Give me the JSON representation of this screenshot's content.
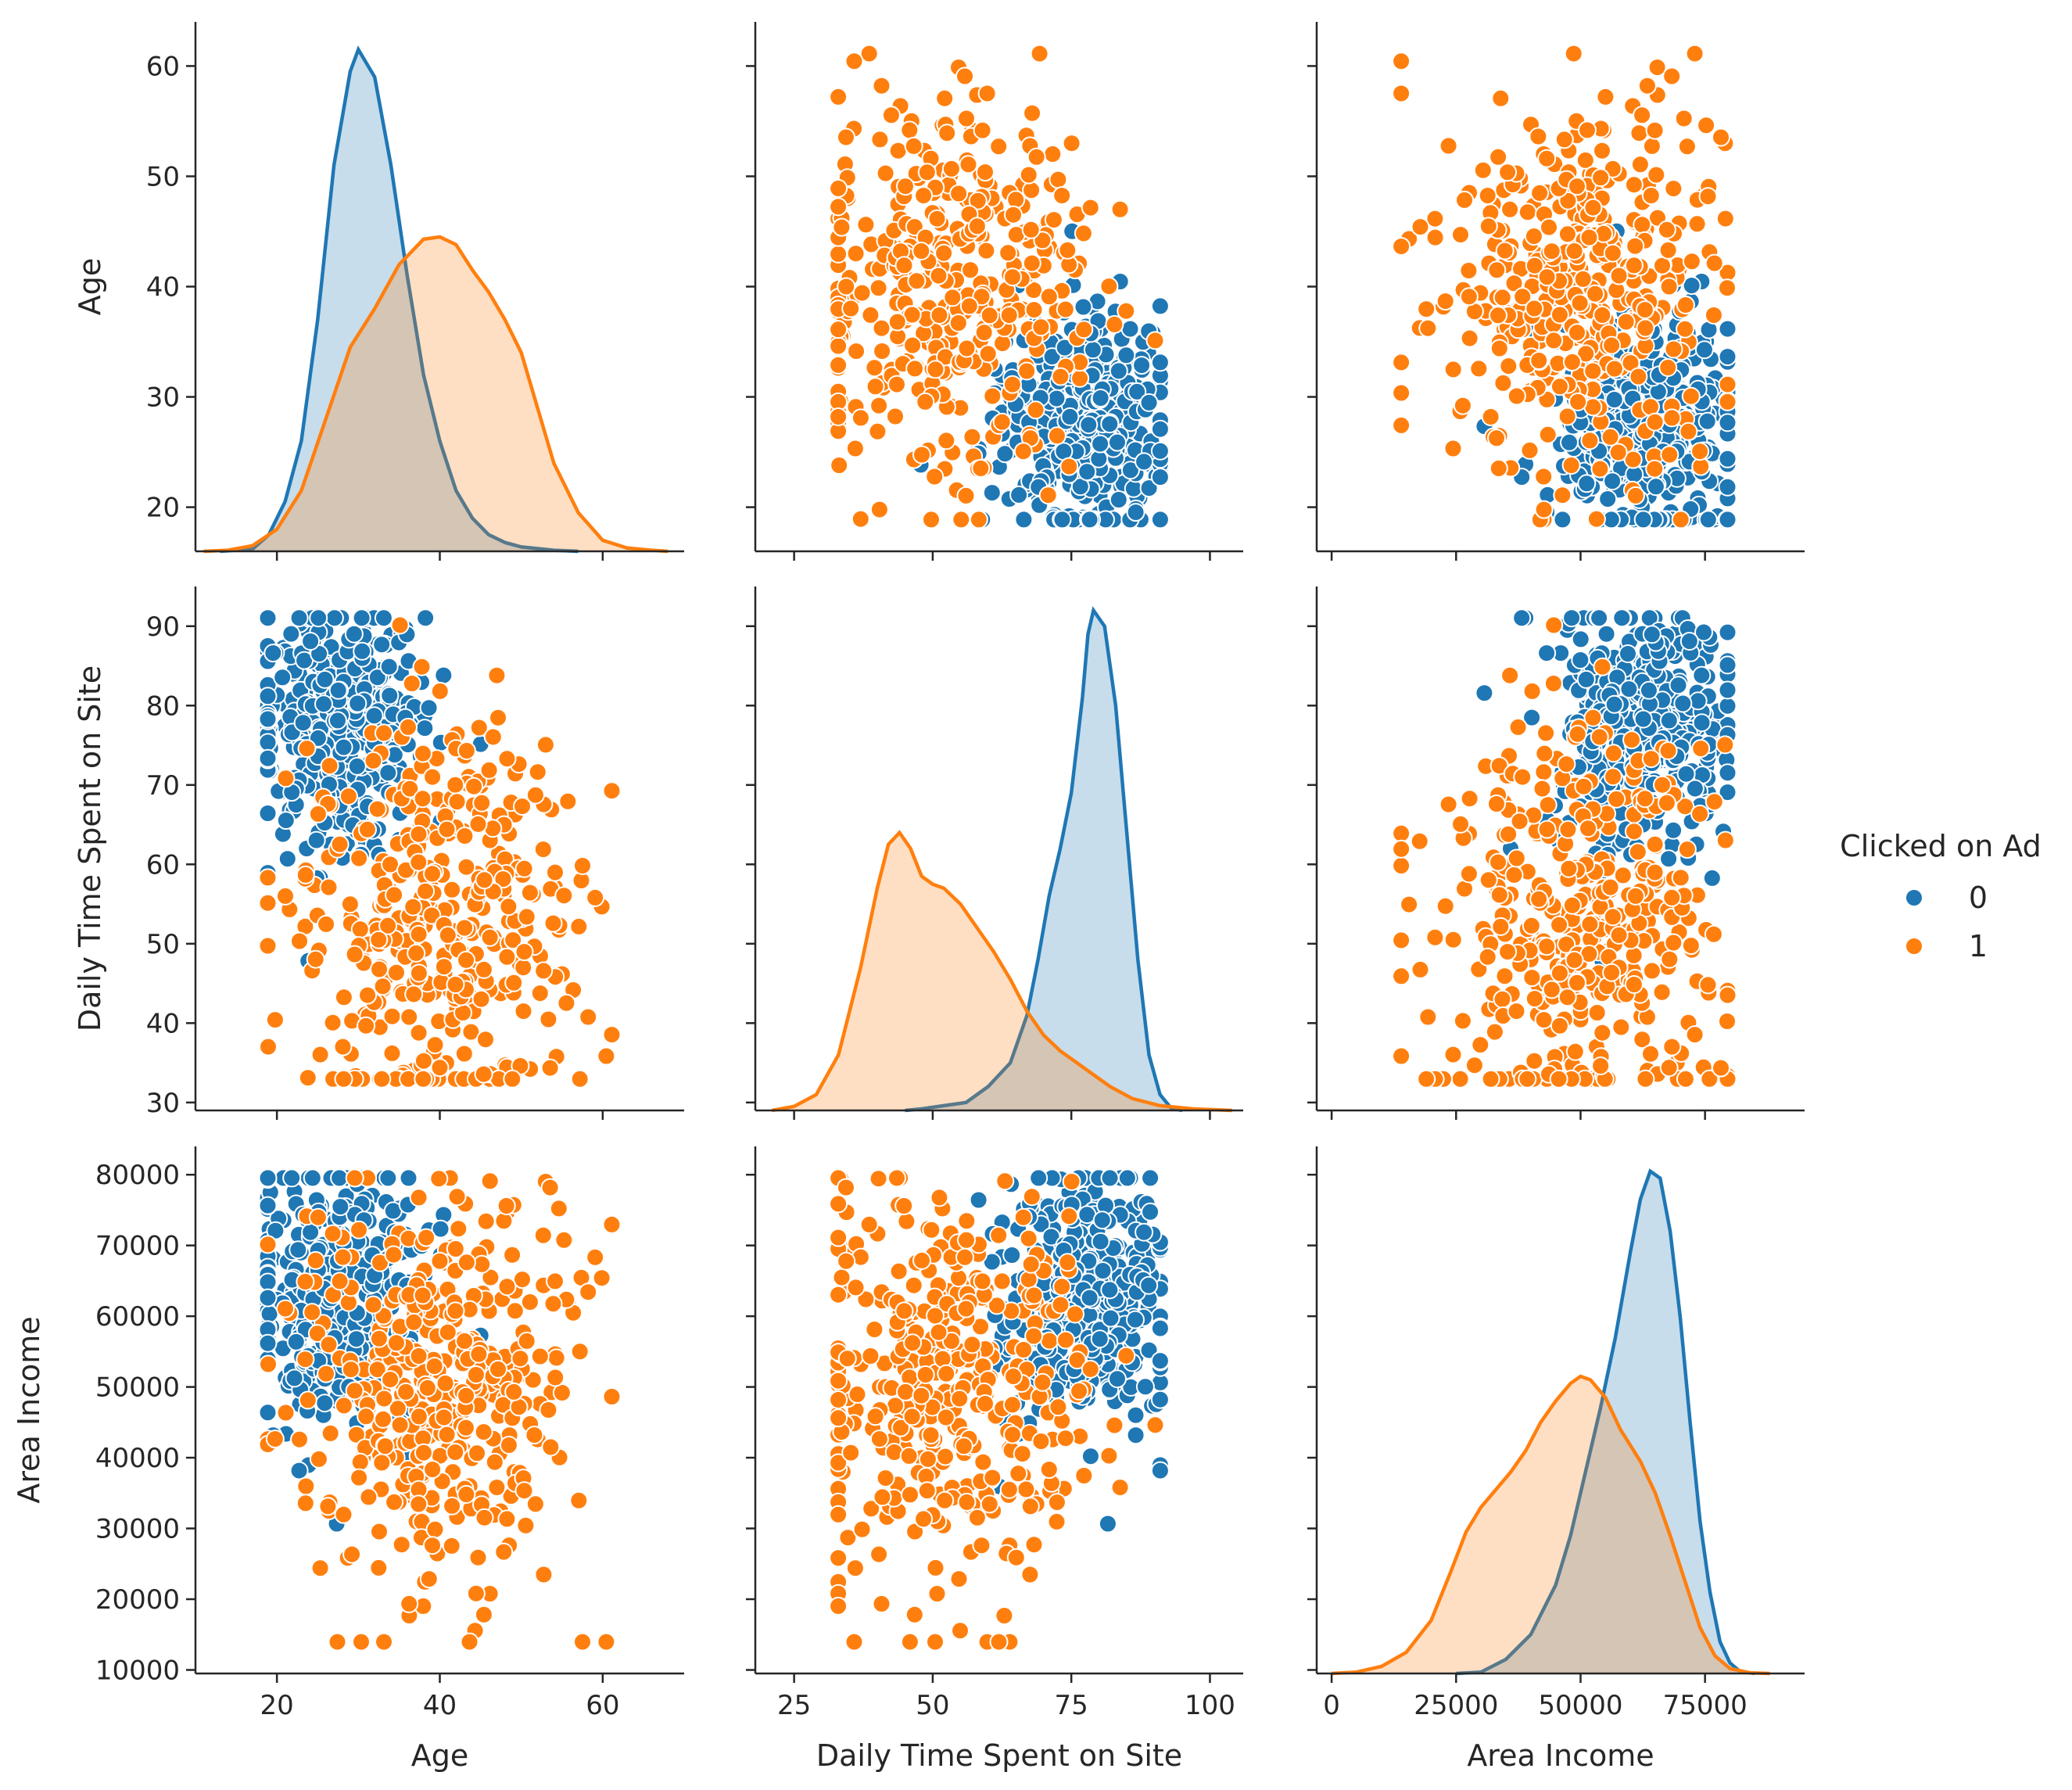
{
  "chart_data": {
    "type": "scatter",
    "subtype": "pairplot",
    "hue": "Clicked on Ad",
    "legend": {
      "title": "Clicked on Ad",
      "placement": "right",
      "entries": [
        {
          "label": "0",
          "color": "#1f77b4"
        },
        {
          "label": "1",
          "color": "#ff7f0e"
        }
      ]
    },
    "grid": false,
    "variables": [
      {
        "name": "Age",
        "range": [
          10,
          70
        ],
        "ticks": [
          20,
          40,
          60
        ],
        "y_ticks": [
          20,
          30,
          40,
          50,
          60
        ],
        "y_range": [
          16,
          64
        ]
      },
      {
        "name": "Daily Time Spent on Site",
        "range": [
          18,
          106
        ],
        "ticks": [
          25,
          50,
          75,
          100
        ],
        "y_ticks": [
          30,
          40,
          50,
          60,
          70,
          80,
          90
        ],
        "y_range": [
          29,
          95
        ]
      },
      {
        "name": "Area Income",
        "range": [
          -3000,
          95000
        ],
        "ticks": [
          0,
          25000,
          50000,
          75000
        ],
        "y_ticks": [
          10000,
          20000,
          30000,
          40000,
          50000,
          60000,
          70000,
          80000
        ],
        "y_range": [
          9500,
          84000
        ]
      }
    ],
    "kde": {
      "Age": {
        "y_range": [
          16,
          64
        ],
        "series": [
          {
            "name": "0",
            "color": "#1f77b4",
            "points": [
              [
                13,
                16
              ],
              [
                17,
                16.2
              ],
              [
                19,
                17.5
              ],
              [
                21,
                20.5
              ],
              [
                23,
                26
              ],
              [
                25,
                37
              ],
              [
                27,
                51
              ],
              [
                29,
                59.5
              ],
              [
                30,
                61.5
              ],
              [
                32,
                59
              ],
              [
                34,
                51
              ],
              [
                36,
                41
              ],
              [
                38,
                32
              ],
              [
                40,
                26
              ],
              [
                42,
                21.5
              ],
              [
                44,
                19
              ],
              [
                46,
                17.5
              ],
              [
                48,
                16.8
              ],
              [
                50,
                16.4
              ],
              [
                54,
                16.1
              ],
              [
                57,
                16
              ]
            ]
          },
          {
            "name": "1",
            "color": "#ff7f0e",
            "points": [
              [
                11,
                16
              ],
              [
                14,
                16.1
              ],
              [
                17,
                16.5
              ],
              [
                20,
                18
              ],
              [
                23,
                21.5
              ],
              [
                26,
                28
              ],
              [
                29,
                34.5
              ],
              [
                32,
                38
              ],
              [
                35,
                42
              ],
              [
                38,
                44.3
              ],
              [
                40,
                44.5
              ],
              [
                42,
                43.8
              ],
              [
                44,
                41.5
              ],
              [
                46,
                39.5
              ],
              [
                48,
                37
              ],
              [
                50,
                34
              ],
              [
                52,
                29
              ],
              [
                54,
                24
              ],
              [
                57,
                19.5
              ],
              [
                60,
                17
              ],
              [
                63,
                16.3
              ],
              [
                66,
                16.1
              ],
              [
                68,
                16
              ]
            ]
          }
        ]
      },
      "Daily Time Spent on Site": {
        "y_range": [
          29,
          95
        ],
        "series": [
          {
            "name": "0",
            "color": "#1f77b4",
            "points": [
              [
                45,
                29
              ],
              [
                48,
                29.2
              ],
              [
                52,
                29.6
              ],
              [
                56,
                30
              ],
              [
                60,
                32
              ],
              [
                64,
                35
              ],
              [
                67,
                41
              ],
              [
                69,
                48
              ],
              [
                71,
                56
              ],
              [
                73,
                62
              ],
              [
                75,
                69
              ],
              [
                77,
                81
              ],
              [
                78,
                89
              ],
              [
                79,
                92
              ],
              [
                81,
                90
              ],
              [
                83,
                80
              ],
              [
                85,
                64
              ],
              [
                87,
                48
              ],
              [
                89,
                36
              ],
              [
                91,
                31
              ],
              [
                93,
                29.3
              ],
              [
                95,
                29
              ]
            ]
          },
          {
            "name": "1",
            "color": "#ff7f0e",
            "points": [
              [
                21,
                29
              ],
              [
                25,
                29.5
              ],
              [
                29,
                31
              ],
              [
                33,
                36
              ],
              [
                37,
                47
              ],
              [
                40,
                57
              ],
              [
                42,
                62.5
              ],
              [
                44,
                64
              ],
              [
                46,
                62
              ],
              [
                48,
                58.5
              ],
              [
                50,
                57.5
              ],
              [
                52,
                57
              ],
              [
                55,
                55
              ],
              [
                58,
                52
              ],
              [
                61,
                49
              ],
              [
                64,
                45.5
              ],
              [
                67,
                41.5
              ],
              [
                70,
                38.5
              ],
              [
                73,
                36.5
              ],
              [
                76,
                35
              ],
              [
                79,
                33.5
              ],
              [
                82,
                32
              ],
              [
                86,
                30.5
              ],
              [
                91,
                29.6
              ],
              [
                97,
                29.2
              ],
              [
                104,
                29
              ]
            ]
          }
        ]
      },
      "Area Income": {
        "y_range": [
          9500,
          84000
        ],
        "series": [
          {
            "name": "0",
            "color": "#1f77b4",
            "points": [
              [
                25000,
                9500
              ],
              [
                30000,
                9700
              ],
              [
                35000,
                11500
              ],
              [
                40000,
                15000
              ],
              [
                45000,
                22000
              ],
              [
                48000,
                29000
              ],
              [
                51000,
                38000
              ],
              [
                54000,
                47000
              ],
              [
                57000,
                57000
              ],
              [
                60000,
                69000
              ],
              [
                62000,
                76500
              ],
              [
                64000,
                80500
              ],
              [
                66000,
                79500
              ],
              [
                68000,
                72000
              ],
              [
                70000,
                60000
              ],
              [
                72000,
                45000
              ],
              [
                74000,
                31000
              ],
              [
                76000,
                21000
              ],
              [
                78000,
                14000
              ],
              [
                80000,
                11000
              ],
              [
                82000,
                9800
              ],
              [
                85000,
                9500
              ]
            ]
          },
          {
            "name": "1",
            "color": "#ff7f0e",
            "points": [
              [
                0,
                9500
              ],
              [
                5000,
                9700
              ],
              [
                10000,
                10500
              ],
              [
                15000,
                12500
              ],
              [
                20000,
                17000
              ],
              [
                24000,
                24000
              ],
              [
                27000,
                29500
              ],
              [
                30000,
                33000
              ],
              [
                33000,
                35500
              ],
              [
                36000,
                38000
              ],
              [
                39000,
                41000
              ],
              [
                42000,
                45000
              ],
              [
                45000,
                48000
              ],
              [
                48000,
                50500
              ],
              [
                50000,
                51500
              ],
              [
                52000,
                51000
              ],
              [
                55000,
                48500
              ],
              [
                58000,
                44000
              ],
              [
                62000,
                39500
              ],
              [
                65000,
                35000
              ],
              [
                68000,
                29000
              ],
              [
                71000,
                22500
              ],
              [
                74000,
                16000
              ],
              [
                77000,
                12000
              ],
              [
                80000,
                10200
              ],
              [
                84000,
                9600
              ],
              [
                88000,
                9500
              ]
            ]
          }
        ]
      }
    },
    "scatter_clouds": {
      "description_free": true,
      "groups": [
        {
          "name": "0",
          "color": "#1f77b4",
          "Age": [
            27,
            5.5
          ],
          "Daily Time Spent on Site": [
            78,
            7.5
          ],
          "Area Income": [
            62000,
            9000
          ],
          "count": 400
        },
        {
          "name": "1",
          "color": "#ff7f0e",
          "Age": [
            40,
            8.5
          ],
          "Daily Time Spent on Site": [
            53,
            13.5
          ],
          "Area Income": [
            49000,
            14000
          ],
          "count": 400
        }
      ]
    }
  }
}
